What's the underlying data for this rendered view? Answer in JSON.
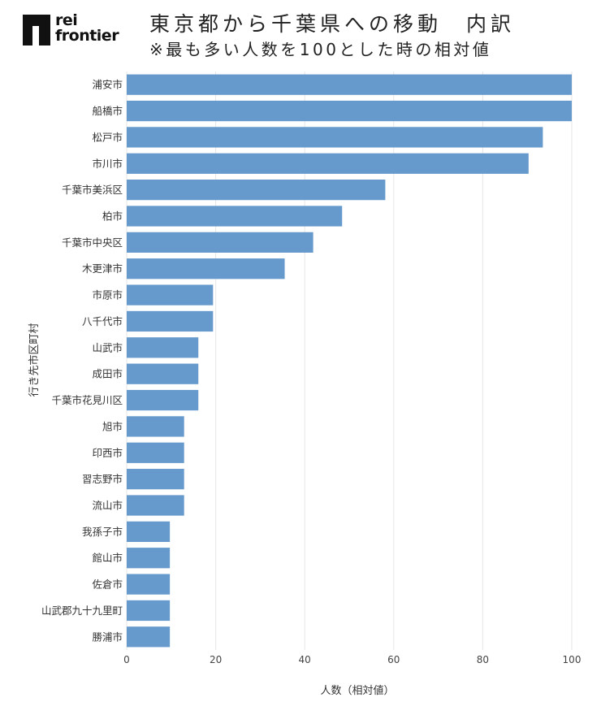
{
  "logo": {
    "line1": "rei",
    "line2": "frontier"
  },
  "title": "東京都から千葉県への移動　内訳",
  "subtitle": "※最も多い人数を100とした時の相対値",
  "chart_data": {
    "type": "bar",
    "orientation": "horizontal",
    "categories": [
      "浦安市",
      "船橋市",
      "松戸市",
      "市川市",
      "千葉市美浜区",
      "柏市",
      "千葉市中央区",
      "木更津市",
      "市原市",
      "八千代市",
      "山武市",
      "成田市",
      "千葉市花見川区",
      "旭市",
      "印西市",
      "習志野市",
      "流山市",
      "我孫子市",
      "館山市",
      "佐倉市",
      "山武郡九十九里町",
      "勝浦市"
    ],
    "values": [
      100,
      100,
      93.5,
      90.3,
      58.1,
      48.4,
      41.9,
      35.5,
      19.4,
      19.4,
      16.1,
      16.1,
      16.1,
      12.9,
      12.9,
      12.9,
      12.9,
      9.7,
      9.7,
      9.7,
      9.7,
      9.7
    ],
    "xlabel": "人数（相対値）",
    "ylabel": "行き先市区町村",
    "xlim": [
      0,
      100
    ],
    "xticks": [
      0,
      20,
      40,
      60,
      80,
      100
    ],
    "grid": "vertical",
    "bar_color": "#6699CC",
    "grid_color": "#E6E6E6"
  }
}
